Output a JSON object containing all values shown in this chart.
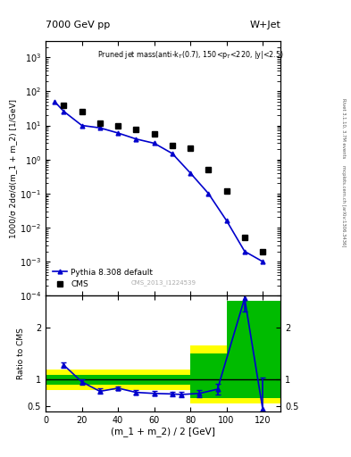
{
  "title_left": "7000 GeV pp",
  "title_right": "W+Jet",
  "annotation": "Pruned jet mass(anti-k$_{T}$(0.7), 150<p$_{T}$<220, |y|<2.5)",
  "watermark": "CMS_2013_I1224539",
  "right_label_top": "Rivet 3.1.10, 3.7M events",
  "right_label_bot": "mcplots.cern.ch [arXiv:1306.3436]",
  "ylabel_main": "1000/σ 2dσ/d(m_1 + m_2) [1/GeV]",
  "ylabel_ratio": "Ratio to CMS",
  "xlabel": "(m_1 + m_2) / 2 [GeV]",
  "cms_x": [
    10,
    20,
    30,
    40,
    50,
    60,
    70,
    80,
    90,
    100,
    110,
    120
  ],
  "cms_y": [
    40,
    25,
    12,
    9.5,
    7.5,
    5.5,
    2.5,
    2.1,
    0.5,
    0.12,
    0.005,
    0.002
  ],
  "pythia_x": [
    5,
    10,
    20,
    30,
    40,
    50,
    60,
    70,
    80,
    90,
    100,
    110,
    120
  ],
  "pythia_y": [
    50,
    26,
    10,
    8.5,
    6.0,
    4.0,
    3.0,
    1.5,
    0.4,
    0.1,
    0.016,
    0.002,
    0.001
  ],
  "ratio_x": [
    10,
    20,
    30,
    40,
    50,
    60,
    70,
    75,
    85,
    95,
    110,
    120
  ],
  "ratio_y": [
    1.28,
    0.96,
    0.78,
    0.84,
    0.76,
    0.74,
    0.73,
    0.72,
    0.74,
    0.82,
    2.55,
    0.44
  ],
  "ratio_yerr_lo": [
    0.05,
    0.05,
    0.05,
    0.04,
    0.04,
    0.04,
    0.04,
    0.05,
    0.07,
    0.1,
    0.25,
    0.25
  ],
  "ratio_yerr_hi": [
    0.05,
    0.05,
    0.05,
    0.04,
    0.04,
    0.04,
    0.04,
    0.05,
    0.07,
    0.1,
    0.25,
    0.6
  ],
  "band_x_edges": [
    0,
    10,
    20,
    30,
    40,
    50,
    70,
    80,
    90,
    100,
    110,
    130
  ],
  "band_yellow_lo": [
    0.8,
    0.8,
    0.8,
    0.8,
    0.8,
    0.8,
    0.8,
    0.55,
    0.55,
    0.55,
    0.55,
    0.55
  ],
  "band_yellow_hi": [
    1.2,
    1.2,
    1.2,
    1.2,
    1.2,
    1.2,
    1.2,
    1.65,
    1.65,
    2.5,
    2.5,
    2.5
  ],
  "band_green_lo": [
    0.9,
    0.9,
    0.9,
    0.9,
    0.9,
    0.9,
    0.9,
    0.65,
    0.65,
    0.65,
    0.65,
    0.65
  ],
  "band_green_hi": [
    1.1,
    1.1,
    1.1,
    1.1,
    1.1,
    1.1,
    1.1,
    1.5,
    1.5,
    2.5,
    2.5,
    2.5
  ],
  "color_cms": "black",
  "color_pythia": "#0000CC",
  "color_yellow": "#FFFF00",
  "color_green": "#00BB00",
  "ylim_main": [
    0.0001,
    3000.0
  ],
  "ylim_ratio": [
    0.4,
    2.6
  ],
  "xlim": [
    0,
    130
  ]
}
